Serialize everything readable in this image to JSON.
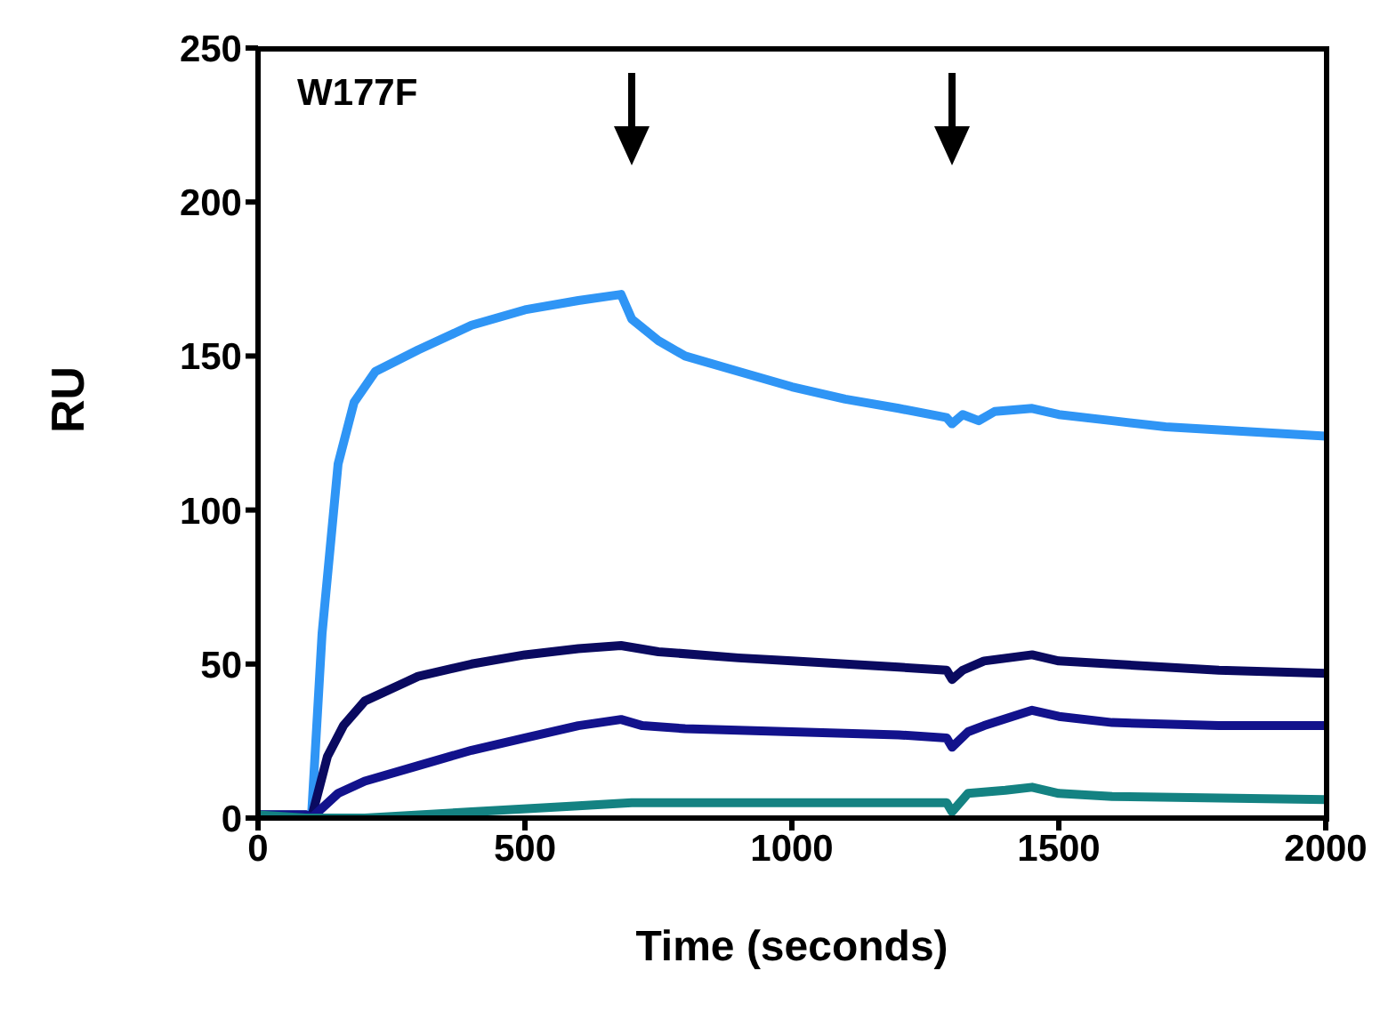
{
  "chart_data": {
    "type": "line",
    "xlabel": "Time (seconds)",
    "ylabel": "RU",
    "annotations": [
      "W177F"
    ],
    "xlim": [
      0,
      2000
    ],
    "xticks": [
      0,
      500,
      1000,
      1500,
      2000
    ],
    "ylim": [
      0,
      250
    ],
    "yticks": [
      0,
      50,
      100,
      150,
      200,
      250
    ],
    "grid": false,
    "legend": false,
    "marker": "none",
    "line_style": "solid",
    "series": [
      {
        "color": "#2f95f5",
        "x": [
          0,
          90,
          100,
          120,
          150,
          180,
          220,
          300,
          400,
          500,
          600,
          680,
          700,
          750,
          800,
          900,
          1000,
          1100,
          1200,
          1290,
          1300,
          1320,
          1350,
          1380,
          1450,
          1500,
          1600,
          1700,
          1800,
          1900,
          2000
        ],
        "values": [
          1,
          1,
          0,
          60,
          115,
          135,
          145,
          152,
          160,
          165,
          168,
          170,
          162,
          155,
          150,
          145,
          140,
          136,
          133,
          130,
          128,
          131,
          129,
          132,
          133,
          131,
          129,
          127,
          126,
          125,
          124
        ]
      },
      {
        "color": "#0a0a60",
        "x": [
          0,
          90,
          100,
          130,
          160,
          200,
          300,
          400,
          500,
          600,
          680,
          750,
          900,
          1000,
          1100,
          1200,
          1290,
          1300,
          1320,
          1360,
          1450,
          1500,
          1600,
          1800,
          2000
        ],
        "values": [
          1,
          1,
          0,
          20,
          30,
          38,
          46,
          50,
          53,
          55,
          56,
          54,
          52,
          51,
          50,
          49,
          48,
          45,
          48,
          51,
          53,
          51,
          50,
          48,
          47
        ]
      },
      {
        "color": "#12128c",
        "x": [
          0,
          90,
          100,
          150,
          200,
          300,
          400,
          500,
          600,
          680,
          720,
          800,
          1000,
          1200,
          1290,
          1300,
          1330,
          1360,
          1450,
          1500,
          1600,
          1800,
          2000
        ],
        "values": [
          1,
          1,
          0,
          8,
          12,
          17,
          22,
          26,
          30,
          32,
          30,
          29,
          28,
          27,
          26,
          23,
          28,
          30,
          35,
          33,
          31,
          30,
          30
        ]
      },
      {
        "color": "#148282",
        "x": [
          0,
          90,
          200,
          400,
          600,
          700,
          1000,
          1290,
          1300,
          1330,
          1400,
          1450,
          1500,
          1600,
          2000
        ],
        "values": [
          1,
          0,
          0,
          2,
          4,
          5,
          5,
          5,
          2,
          8,
          9,
          10,
          8,
          7,
          6
        ]
      }
    ]
  }
}
